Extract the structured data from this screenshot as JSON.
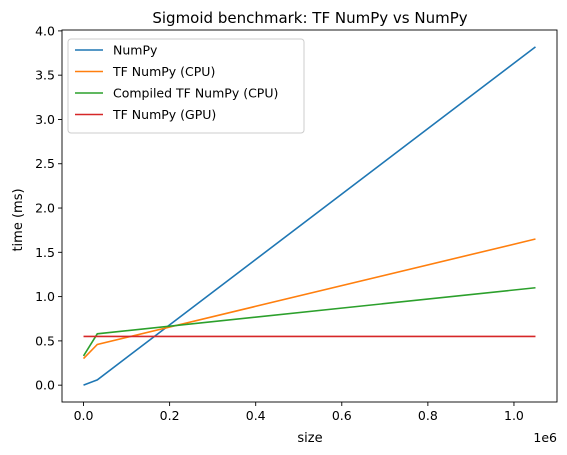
{
  "chart_data": {
    "type": "line",
    "title": "Sigmoid benchmark: TF NumPy vs NumPy",
    "xlabel": "size",
    "ylabel": "time (ms)",
    "x_offset_label": "1e6",
    "x_scale": 1000000,
    "xlim": [
      -0.05,
      1.1
    ],
    "ylim": [
      -0.19,
      4.01
    ],
    "xticks": [
      0.0,
      0.2,
      0.4,
      0.6,
      0.8,
      1.0
    ],
    "xtick_labels": [
      "0.0",
      "0.2",
      "0.4",
      "0.6",
      "0.8",
      "1.0"
    ],
    "yticks": [
      0.0,
      0.5,
      1.0,
      1.5,
      2.0,
      2.5,
      3.0,
      3.5,
      4.0
    ],
    "ytick_labels": [
      "0.0",
      "0.5",
      "1.0",
      "1.5",
      "2.0",
      "2.5",
      "3.0",
      "3.5",
      "4.0"
    ],
    "grid": false,
    "legend_position": "top-left",
    "series": [
      {
        "name": "NumPy",
        "color": "#1f77b4",
        "x": [
          0.0,
          0.032,
          1.05
        ],
        "y": [
          0.0,
          0.06,
          3.82
        ]
      },
      {
        "name": "TF NumPy (CPU)",
        "color": "#ff7f0e",
        "x": [
          0.0,
          0.032,
          1.05
        ],
        "y": [
          0.3,
          0.46,
          1.65
        ]
      },
      {
        "name": "Compiled TF NumPy (CPU)",
        "color": "#2ca02c",
        "x": [
          0.0,
          0.032,
          1.05
        ],
        "y": [
          0.33,
          0.58,
          1.1
        ]
      },
      {
        "name": "TF NumPy (GPU)",
        "color": "#d62728",
        "x": [
          0.0,
          0.032,
          1.05
        ],
        "y": [
          0.55,
          0.55,
          0.55
        ]
      }
    ]
  }
}
